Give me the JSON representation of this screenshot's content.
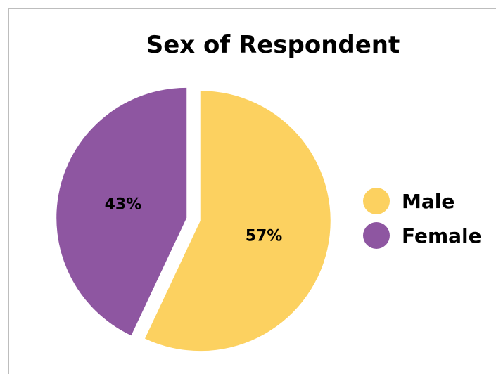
{
  "chart_data": {
    "type": "pie",
    "title": "Sex of Respondent",
    "categories": [
      "Male",
      "Female"
    ],
    "values": [
      57,
      43
    ],
    "value_labels": [
      "57%",
      "43%"
    ],
    "colors": [
      "#FCD160",
      "#8E56A1"
    ],
    "legend_position": "right",
    "exploded": true
  }
}
